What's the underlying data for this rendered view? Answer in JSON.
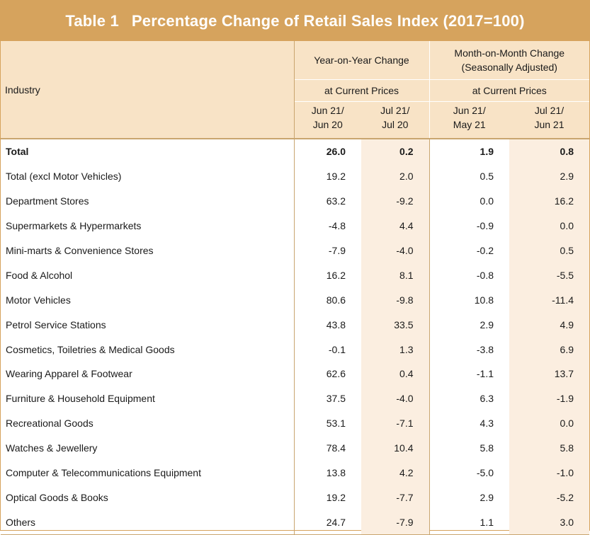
{
  "title": {
    "number": "Table 1",
    "text": "Percentage Change of Retail Sales Index (2017=100)"
  },
  "header": {
    "industry": "Industry",
    "yoy_line1": "Year-on-Year Change",
    "mom_line1": "Month-on-Month Change",
    "mom_line2": "(Seasonally Adjusted)",
    "yoy_sub": "at Current Prices",
    "mom_sub": "at Current Prices",
    "periods": [
      {
        "line1": "Jun 21/",
        "line2": "Jun 20"
      },
      {
        "line1": "Jul 21/",
        "line2": "Jul 20"
      },
      {
        "line1": "Jun 21/",
        "line2": "May 21"
      },
      {
        "line1": "Jul 21/",
        "line2": "Jun 21"
      }
    ]
  },
  "rows": [
    {
      "industry": "Total",
      "values": [
        "26.0",
        "0.2",
        "1.9",
        "0.8"
      ]
    },
    {
      "industry": "Total (excl Motor Vehicles)",
      "values": [
        "19.2",
        "2.0",
        "0.5",
        "2.9"
      ]
    },
    {
      "industry": "Department Stores",
      "values": [
        "63.2",
        "-9.2",
        "0.0",
        "16.2"
      ]
    },
    {
      "industry": "Supermarkets & Hypermarkets",
      "values": [
        "-4.8",
        "4.4",
        "-0.9",
        "0.0"
      ]
    },
    {
      "industry": "Mini-marts & Convenience Stores",
      "values": [
        "-7.9",
        "-4.0",
        "-0.2",
        "0.5"
      ]
    },
    {
      "industry": "Food & Alcohol",
      "values": [
        "16.2",
        "8.1",
        "-0.8",
        "-5.5"
      ]
    },
    {
      "industry": "Motor Vehicles",
      "values": [
        "80.6",
        "-9.8",
        "10.8",
        "-11.4"
      ]
    },
    {
      "industry": "Petrol Service Stations",
      "values": [
        "43.8",
        "33.5",
        "2.9",
        "4.9"
      ]
    },
    {
      "industry": "Cosmetics, Toiletries & Medical Goods",
      "values": [
        "-0.1",
        "1.3",
        "-3.8",
        "6.9"
      ]
    },
    {
      "industry": "Wearing Apparel & Footwear",
      "values": [
        "62.6",
        "0.4",
        "-1.1",
        "13.7"
      ]
    },
    {
      "industry": "Furniture & Household Equipment",
      "values": [
        "37.5",
        "-4.0",
        "6.3",
        "-1.9"
      ]
    },
    {
      "industry": "Recreational Goods",
      "values": [
        "53.1",
        "-7.1",
        "4.3",
        "0.0"
      ]
    },
    {
      "industry": "Watches & Jewellery",
      "values": [
        "78.4",
        "10.4",
        "5.8",
        "5.8"
      ]
    },
    {
      "industry": "Computer & Telecommunications Equipment",
      "values": [
        "13.8",
        "4.2",
        "-5.0",
        "-1.0"
      ]
    },
    {
      "industry": "Optical Goods & Books",
      "values": [
        "19.2",
        "-7.7",
        "2.9",
        "-5.2"
      ]
    },
    {
      "industry": "Others",
      "values": [
        "24.7",
        "-7.9",
        "1.1",
        "3.0"
      ]
    }
  ]
}
